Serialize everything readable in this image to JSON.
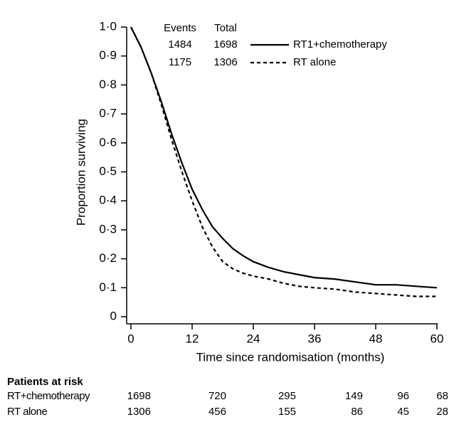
{
  "chart_data": {
    "type": "line",
    "ylabel": "Proportion surviving",
    "xlabel": "Time since randomisation (months)",
    "x": [
      0,
      2,
      4,
      6,
      8,
      10,
      12,
      14,
      16,
      18,
      20,
      22,
      24,
      27,
      30,
      33,
      36,
      40,
      44,
      48,
      52,
      56,
      60
    ],
    "series": [
      {
        "name": "RT1+chemotherapy",
        "color": "#000000",
        "line_style": "solid",
        "events": 1484,
        "total": 1698,
        "values": [
          1.0,
          0.93,
          0.84,
          0.74,
          0.63,
          0.53,
          0.44,
          0.37,
          0.31,
          0.27,
          0.235,
          0.21,
          0.19,
          0.17,
          0.155,
          0.145,
          0.135,
          0.13,
          0.12,
          0.11,
          0.11,
          0.105,
          0.1
        ]
      },
      {
        "name": "RT alone",
        "color": "#000000",
        "line_style": "dashed",
        "events": 1175,
        "total": 1306,
        "values": [
          1.0,
          0.93,
          0.84,
          0.73,
          0.61,
          0.5,
          0.4,
          0.31,
          0.24,
          0.19,
          0.165,
          0.15,
          0.14,
          0.13,
          0.115,
          0.105,
          0.1,
          0.095,
          0.085,
          0.08,
          0.075,
          0.07,
          0.07
        ]
      }
    ],
    "legend_headers": [
      "Events",
      "Total"
    ],
    "xlim": [
      0,
      60
    ],
    "xticks": [
      0,
      12,
      24,
      36,
      48,
      60
    ],
    "ylim": [
      0,
      1
    ],
    "yticks": [
      0,
      {
        "value": 0.1,
        "label": "0·1"
      },
      {
        "value": 0.2,
        "label": "0·2"
      },
      {
        "value": 0.3,
        "label": "0·3"
      },
      {
        "value": 0.4,
        "label": "0·4"
      },
      {
        "value": 0.5,
        "label": "0·5"
      },
      {
        "value": 0.6,
        "label": "0·6"
      },
      {
        "value": 0.7,
        "label": "0·7"
      },
      {
        "value": 0.8,
        "label": "0·8"
      },
      {
        "value": 0.9,
        "label": "0·9"
      },
      {
        "value": 1,
        "label": "1·0"
      }
    ],
    "grid": false,
    "risk_table": {
      "title": "Patients at risk",
      "rows": [
        {
          "name": "RT+chemotherapy",
          "values": [
            1698,
            720,
            295,
            149,
            96,
            68
          ]
        },
        {
          "name": "RT alone",
          "values": [
            1306,
            456,
            155,
            86,
            45,
            28
          ]
        }
      ]
    }
  }
}
